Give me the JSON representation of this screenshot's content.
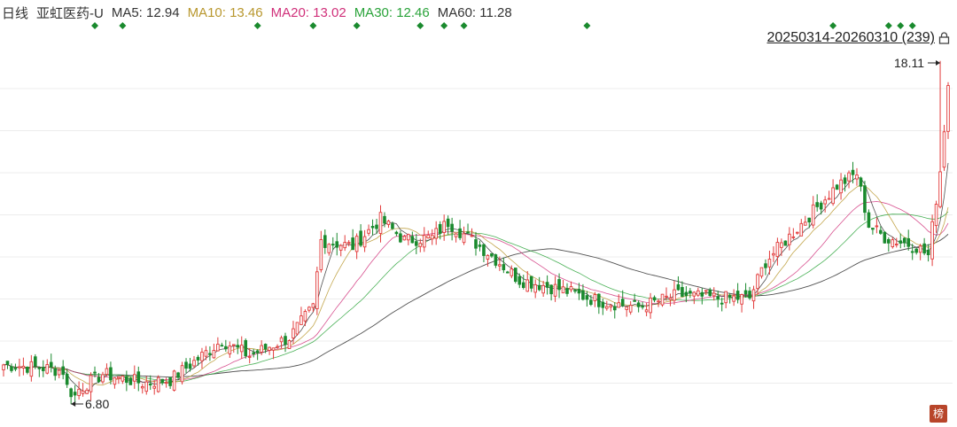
{
  "header": {
    "period": "日线",
    "stock_name": "亚虹医药-U",
    "ma5": "MA5: 12.94",
    "ma10": "MA10: 13.46",
    "ma20": "MA20: 13.02",
    "ma30": "MA30: 12.46",
    "ma60": "MA60: 11.28"
  },
  "range_label": "20250314-20260310 (239)",
  "max_label": "18.11",
  "min_label": "6.80",
  "logo_text": "榜",
  "colors": {
    "up": "#e23b3b",
    "down": "#1a8a2e",
    "ma5": "#333333",
    "ma10": "#b8972e",
    "ma20": "#d0307a",
    "ma30": "#2aa33a",
    "ma60": "#333333",
    "marker": "#1a8a2e",
    "grid": "#ececec"
  },
  "chart_data": {
    "type": "candlestick",
    "date_range": [
      "20250314",
      "20260310"
    ],
    "bars": 239,
    "y_max": 18.11,
    "y_min": 6.8,
    "ylim": [
      6.4,
      18.6
    ],
    "grid": true,
    "close_anchors": [
      [
        0,
        8.1
      ],
      [
        10,
        8.0
      ],
      [
        15,
        7.9
      ],
      [
        17,
        6.85
      ],
      [
        19,
        7.3
      ],
      [
        25,
        7.8
      ],
      [
        35,
        7.5
      ],
      [
        42,
        7.6
      ],
      [
        48,
        8.2
      ],
      [
        55,
        8.9
      ],
      [
        62,
        8.4
      ],
      [
        72,
        9.0
      ],
      [
        78,
        10.0
      ],
      [
        80,
        12.2
      ],
      [
        88,
        12.0
      ],
      [
        95,
        12.9
      ],
      [
        101,
        12.2
      ],
      [
        108,
        12.3
      ],
      [
        112,
        12.8
      ],
      [
        122,
        11.8
      ],
      [
        130,
        10.9
      ],
      [
        140,
        10.6
      ],
      [
        150,
        10.2
      ],
      [
        160,
        10.0
      ],
      [
        170,
        10.4
      ],
      [
        180,
        10.3
      ],
      [
        188,
        10.3
      ],
      [
        192,
        11.5
      ],
      [
        200,
        12.6
      ],
      [
        210,
        14.0
      ],
      [
        215,
        14.4
      ],
      [
        218,
        12.7
      ],
      [
        222,
        12.3
      ],
      [
        230,
        12.0
      ],
      [
        233,
        11.7
      ],
      [
        236,
        14.5
      ],
      [
        238,
        17.3
      ]
    ],
    "marker_bars": [
      23,
      30,
      64,
      78,
      89,
      105,
      111,
      116,
      147,
      209,
      223,
      226,
      229
    ]
  }
}
